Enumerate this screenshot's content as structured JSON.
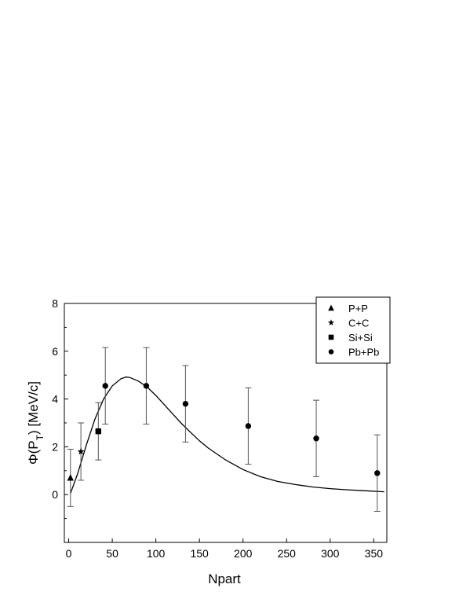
{
  "chart_data": {
    "type": "scatter",
    "xlabel": "Npart",
    "ylabel": "Φ(P_T) [MeV/c]",
    "xlim": [
      -5,
      365
    ],
    "ylim": [
      -2,
      8
    ],
    "xticks": [
      0,
      50,
      100,
      150,
      200,
      250,
      300,
      350
    ],
    "yticks": [
      0,
      2,
      4,
      6,
      8
    ],
    "legend_position": "top-right",
    "series": [
      {
        "name": "P+P",
        "marker": "triangle",
        "points": [
          {
            "x": 2,
            "y": 0.7,
            "err": 1.2
          }
        ]
      },
      {
        "name": "C+C",
        "marker": "star",
        "points": [
          {
            "x": 14,
            "y": 1.8,
            "err": 1.2
          }
        ]
      },
      {
        "name": "Si+Si",
        "marker": "square",
        "points": [
          {
            "x": 34,
            "y": 2.65,
            "err": 1.2
          }
        ]
      },
      {
        "name": "Pb+Pb",
        "marker": "circle",
        "points": [
          {
            "x": 42,
            "y": 4.55,
            "err": 1.6
          },
          {
            "x": 89,
            "y": 4.55,
            "err": 1.6
          },
          {
            "x": 134,
            "y": 3.8,
            "err": 1.6
          },
          {
            "x": 206,
            "y": 2.87,
            "err": 1.6
          },
          {
            "x": 284,
            "y": 2.35,
            "err": 1.6
          },
          {
            "x": 354,
            "y": 0.9,
            "err": 1.6
          }
        ]
      }
    ],
    "fit_curve": {
      "x": [
        2,
        10,
        20,
        30,
        40,
        50,
        60,
        66,
        70,
        80,
        90,
        100,
        110,
        120,
        130,
        140,
        150,
        160,
        180,
        200,
        220,
        240,
        260,
        280,
        300,
        320,
        340,
        362
      ],
      "y": [
        0.05,
        0.85,
        2.05,
        3.15,
        4.0,
        4.55,
        4.85,
        4.92,
        4.9,
        4.75,
        4.5,
        4.15,
        3.75,
        3.35,
        2.95,
        2.6,
        2.25,
        1.95,
        1.45,
        1.05,
        0.75,
        0.55,
        0.42,
        0.32,
        0.25,
        0.2,
        0.16,
        0.12
      ]
    }
  }
}
